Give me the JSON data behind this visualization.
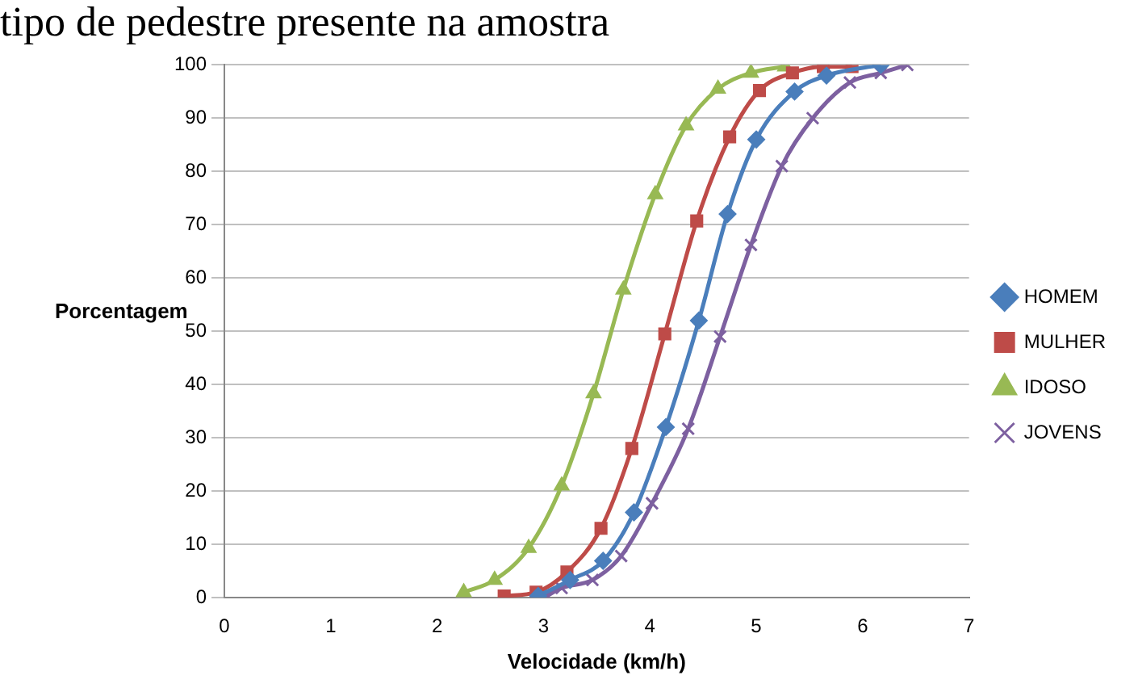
{
  "chart_data": {
    "type": "line",
    "title": "tipo de pedestre presente na amostra",
    "xlabel": "Velocidade (km/h)",
    "ylabel": "Porcentagem",
    "xlim": [
      0,
      7
    ],
    "xticks": [
      0,
      1,
      2,
      3,
      4,
      5,
      6,
      7
    ],
    "ylim": [
      0,
      100
    ],
    "yticks": [
      0,
      10,
      20,
      30,
      40,
      50,
      60,
      70,
      80,
      90,
      100
    ],
    "grid": "y",
    "legend": "right",
    "series": [
      {
        "name": "HOMEM",
        "color": "#4a7ebb",
        "marker": "diamond",
        "x": [
          2.95,
          3.25,
          3.56,
          3.85,
          4.15,
          4.46,
          4.73,
          5.0,
          5.36,
          5.66,
          6.17
        ],
        "values": [
          0.3,
          3.3,
          6.9,
          16,
          32,
          52,
          72,
          86,
          95,
          98,
          100
        ]
      },
      {
        "name": "MULHER",
        "color": "#be4b48",
        "marker": "square",
        "x": [
          2.63,
          2.93,
          3.22,
          3.54,
          3.83,
          4.14,
          4.44,
          4.75,
          5.03,
          5.34,
          5.63,
          5.9
        ],
        "values": [
          0.3,
          1,
          4.8,
          13,
          28,
          49.5,
          70.7,
          86.5,
          95.2,
          98.5,
          99.7,
          99.7
        ]
      },
      {
        "name": "IDOSO",
        "color": "#98b954",
        "marker": "triangle",
        "x": [
          2.25,
          2.54,
          2.86,
          3.17,
          3.47,
          3.75,
          4.05,
          4.34,
          4.64,
          4.95,
          5.27
        ],
        "values": [
          1,
          3.3,
          9.3,
          21,
          38.3,
          57.8,
          75.7,
          88.6,
          95.5,
          98.5,
          99.7
        ]
      },
      {
        "name": "JOVENS",
        "color": "#7d60a0",
        "marker": "cross",
        "x": [
          3.03,
          3.17,
          3.46,
          3.73,
          4.02,
          4.36,
          4.66,
          4.95,
          5.24,
          5.53,
          5.88,
          6.17,
          6.42
        ],
        "values": [
          0.3,
          1.8,
          3.3,
          7.8,
          17.7,
          31.7,
          49,
          66.2,
          81,
          90,
          96.7,
          98.5,
          100
        ]
      }
    ]
  }
}
